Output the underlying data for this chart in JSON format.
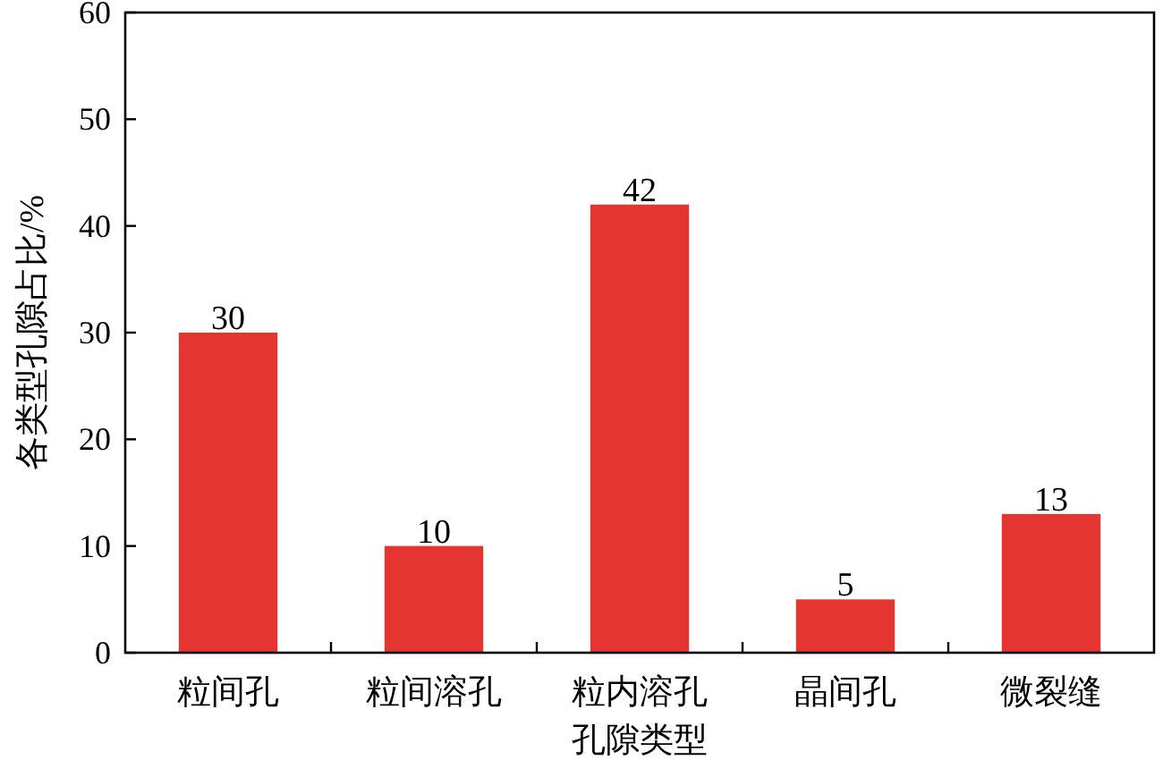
{
  "chart_data": {
    "type": "bar",
    "xlabel": "孔隙类型",
    "ylabel": "各类型孔隙占比/%",
    "categories": [
      "粒间孔",
      "粒间溶孔",
      "粒内溶孔",
      "晶间孔",
      "微裂缝"
    ],
    "values": [
      30,
      10,
      42,
      5,
      13
    ],
    "color": "#e53530",
    "ylim": [
      0,
      60
    ],
    "yticks": [
      0,
      10,
      20,
      30,
      40,
      50,
      60
    ],
    "data_labels": true
  }
}
